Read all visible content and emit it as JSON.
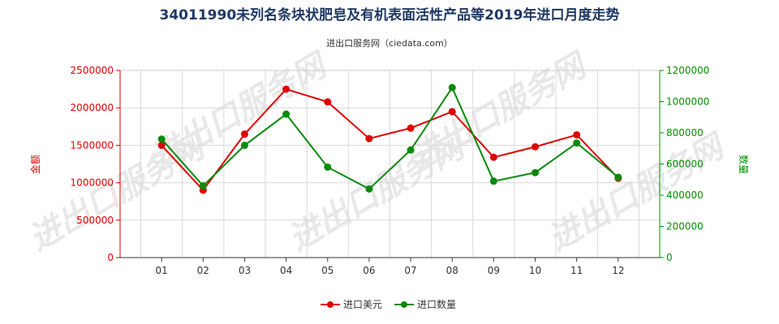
{
  "chart_data": {
    "type": "line",
    "title": "34011990未列名条块状肥皂及有机表面活性产品等2019年进口月度走势",
    "subtitle": "进出口服务网（ciedata.com）",
    "categories": [
      "01",
      "02",
      "03",
      "04",
      "05",
      "06",
      "07",
      "08",
      "09",
      "10",
      "11",
      "12"
    ],
    "y_left": {
      "label": "金额",
      "ylim": [
        0,
        2500000
      ],
      "ticks": [
        0,
        500000,
        1000000,
        1500000,
        2000000,
        2500000
      ]
    },
    "y_right": {
      "label": "数量",
      "ylim": [
        0,
        1200000
      ],
      "ticks": [
        0,
        200000,
        400000,
        600000,
        800000,
        1000000,
        1200000
      ]
    },
    "series": [
      {
        "name": "进口美元",
        "axis": "left",
        "color": "#e00000",
        "values": [
          1500000,
          900000,
          1650000,
          2250000,
          2080000,
          1590000,
          1730000,
          1950000,
          1340000,
          1480000,
          1640000,
          1060000
        ]
      },
      {
        "name": "进口数量",
        "axis": "right",
        "color": "#0a8a0a",
        "values": [
          760000,
          460000,
          720000,
          920000,
          580000,
          440000,
          690000,
          1090000,
          490000,
          545000,
          735000,
          515000
        ]
      }
    ],
    "watermark": "进出口服务网",
    "grid": true,
    "legend_position": "bottom"
  }
}
